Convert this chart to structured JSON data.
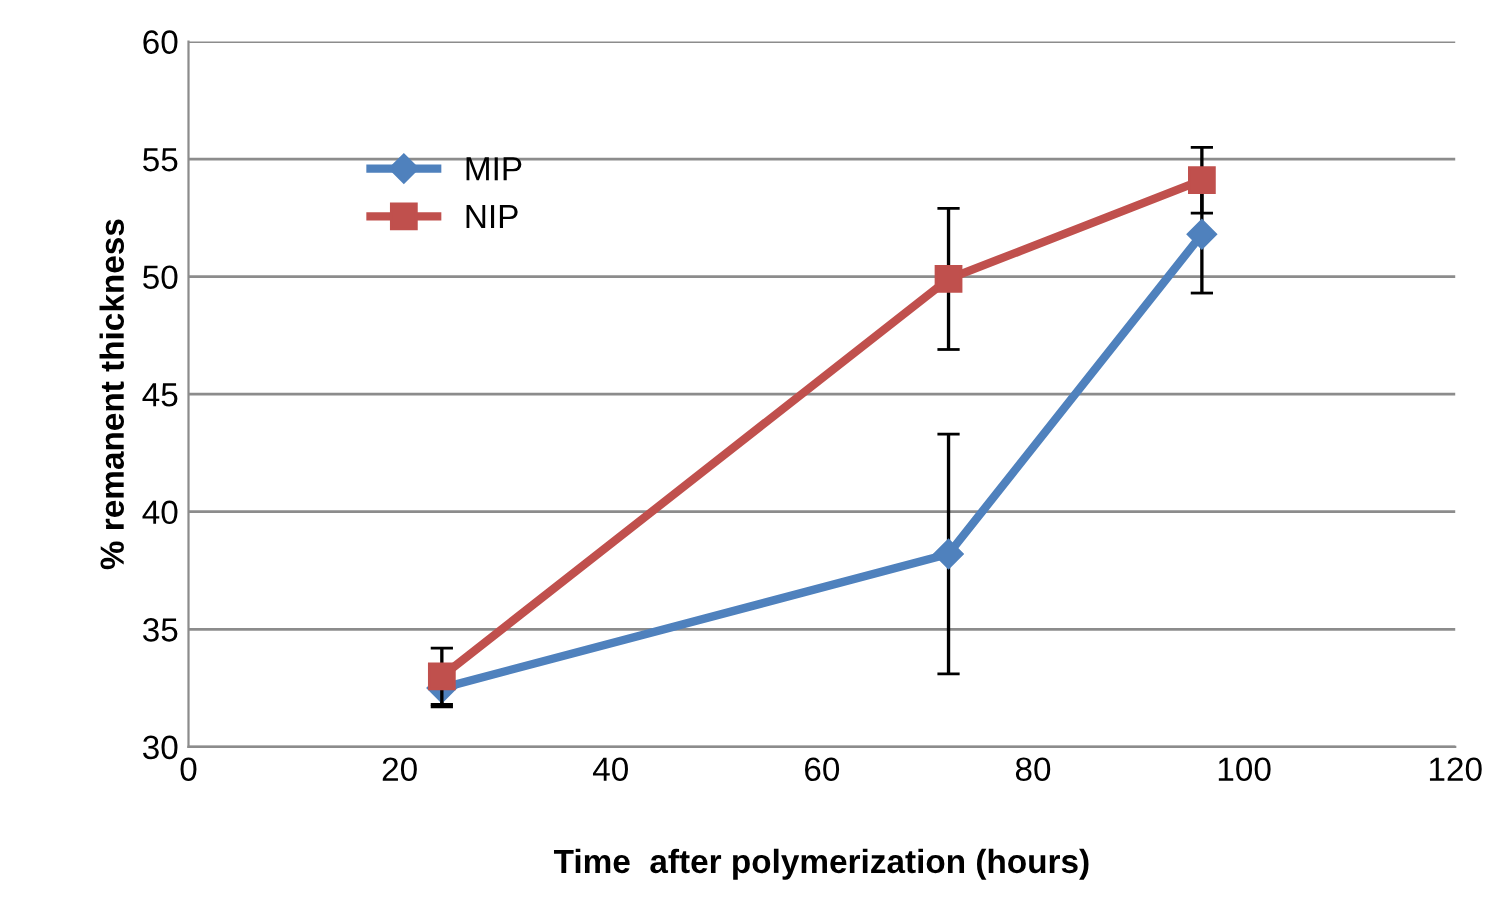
{
  "chart_data": {
    "type": "line",
    "xlabel": "Time  after polymerization (hours)",
    "ylabel": "% remanent thickness",
    "x": [
      24,
      72,
      96
    ],
    "series": [
      {
        "name": "MIP",
        "color": "#4f81bd",
        "values": [
          32.5,
          38.2,
          51.8
        ],
        "errors": [
          0.8,
          5.1,
          2.5
        ],
        "marker": "diamond"
      },
      {
        "name": "NIP",
        "color": "#c0504d",
        "values": [
          33.0,
          49.9,
          54.1
        ],
        "errors": [
          1.2,
          3.0,
          1.4
        ],
        "marker": "square"
      }
    ],
    "xlim": [
      0,
      120
    ],
    "xticks": [
      0,
      20,
      40,
      60,
      80,
      100,
      120
    ],
    "ylim": [
      30,
      60
    ],
    "yticks": [
      30,
      35,
      40,
      45,
      50,
      55,
      60
    ],
    "grid": "y",
    "legend": "top left",
    "line_style": "solid"
  }
}
